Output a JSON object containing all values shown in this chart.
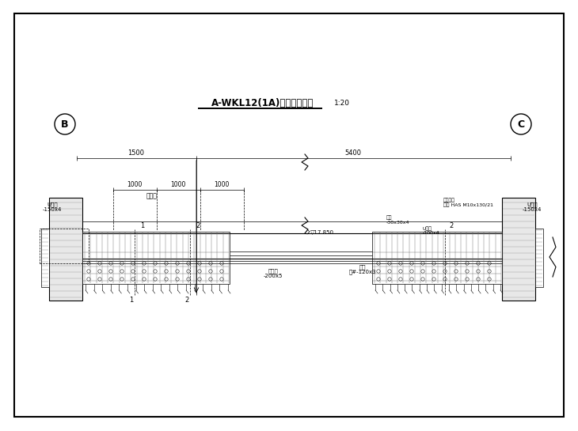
{
  "bg_color": "#ffffff",
  "line_color": "#000000",
  "title": "A-WKL12(1A)粘钢加固图一",
  "scale": "1:20",
  "dim_1500": "1500",
  "dim_5400": "5400",
  "dim_1000a": "1000",
  "dim_1000b": "1000",
  "dim_1000c": "1000",
  "label_B": "B",
  "label_C": "C",
  "ann_u_left": "U形锚",
  "ann_u_left_sub": "-150x4",
  "ann_u_right": "U形锚",
  "ann_u_right_sub": "-150x4",
  "ann_u_mid": "U形锚",
  "ann_u_mid_sub": "-100x4",
  "ann_steel": "钢板",
  "ann_steel_sub": "-30x30x4",
  "ann_bolt": "化学锚栓",
  "ann_bolt_sub": "螺栓 HAS M10x130/21",
  "ann_plate1": "加固板",
  "ann_plate1_sub": "-200x5",
  "ann_plate2": "钢板",
  "ann_plate2_sub": "两#-120x3",
  "ann_top": "加固板",
  "elev": "▽17.850",
  "label_1": "1",
  "label_2": "2"
}
